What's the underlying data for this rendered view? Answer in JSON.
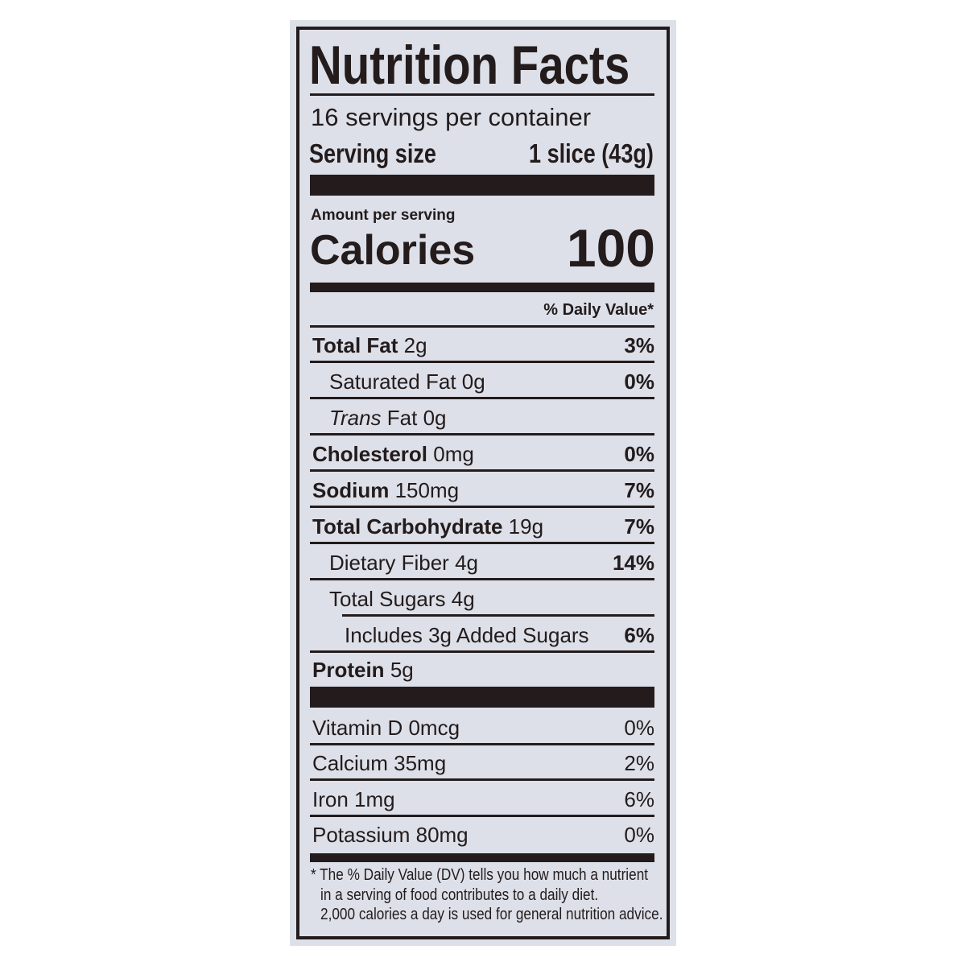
{
  "title": "Nutrition Facts",
  "servings_per_container": "16 servings per container",
  "serving_size_label": "Serving size",
  "serving_size_value": "1 slice (43g)",
  "amount_per_serving": "Amount per serving",
  "calories_label": "Calories",
  "calories_value": "100",
  "daily_value_header": "% Daily Value*",
  "nutrients": [
    {
      "name": "Total Fat",
      "amount": "2g",
      "dv": "3%"
    },
    {
      "name": "Saturated Fat",
      "amount": "0g",
      "dv": "0%"
    },
    {
      "name": "Trans",
      "name_suffix": "Fat",
      "amount": "0g",
      "dv": ""
    },
    {
      "name": "Cholesterol",
      "amount": "0mg",
      "dv": "0%"
    },
    {
      "name": "Sodium",
      "amount": "150mg",
      "dv": "7%"
    },
    {
      "name": "Total Carbohydrate",
      "amount": "19g",
      "dv": "7%"
    },
    {
      "name": "Dietary Fiber",
      "amount": "4g",
      "dv": "14%"
    },
    {
      "name": "Total Sugars",
      "amount": "4g",
      "dv": ""
    },
    {
      "name": "Includes 3g Added Sugars",
      "amount": "",
      "dv": "6%"
    },
    {
      "name": "Protein",
      "amount": "5g",
      "dv": ""
    }
  ],
  "vitamins": [
    {
      "label": "Vitamin D 0mcg",
      "dv": "0%"
    },
    {
      "label": "Calcium 35mg",
      "dv": "2%"
    },
    {
      "label": "Iron 1mg",
      "dv": "6%"
    },
    {
      "label": "Potassium 80mg",
      "dv": "0%"
    }
  ],
  "footnote": [
    "* The % Daily Value (DV) tells you how much a nutrient",
    "in a serving of food contributes to a daily diet.",
    "2,000 calories a day is used for general nutrition advice."
  ],
  "colors": {
    "panel": "#dde0e8",
    "ink": "#231b1c"
  }
}
